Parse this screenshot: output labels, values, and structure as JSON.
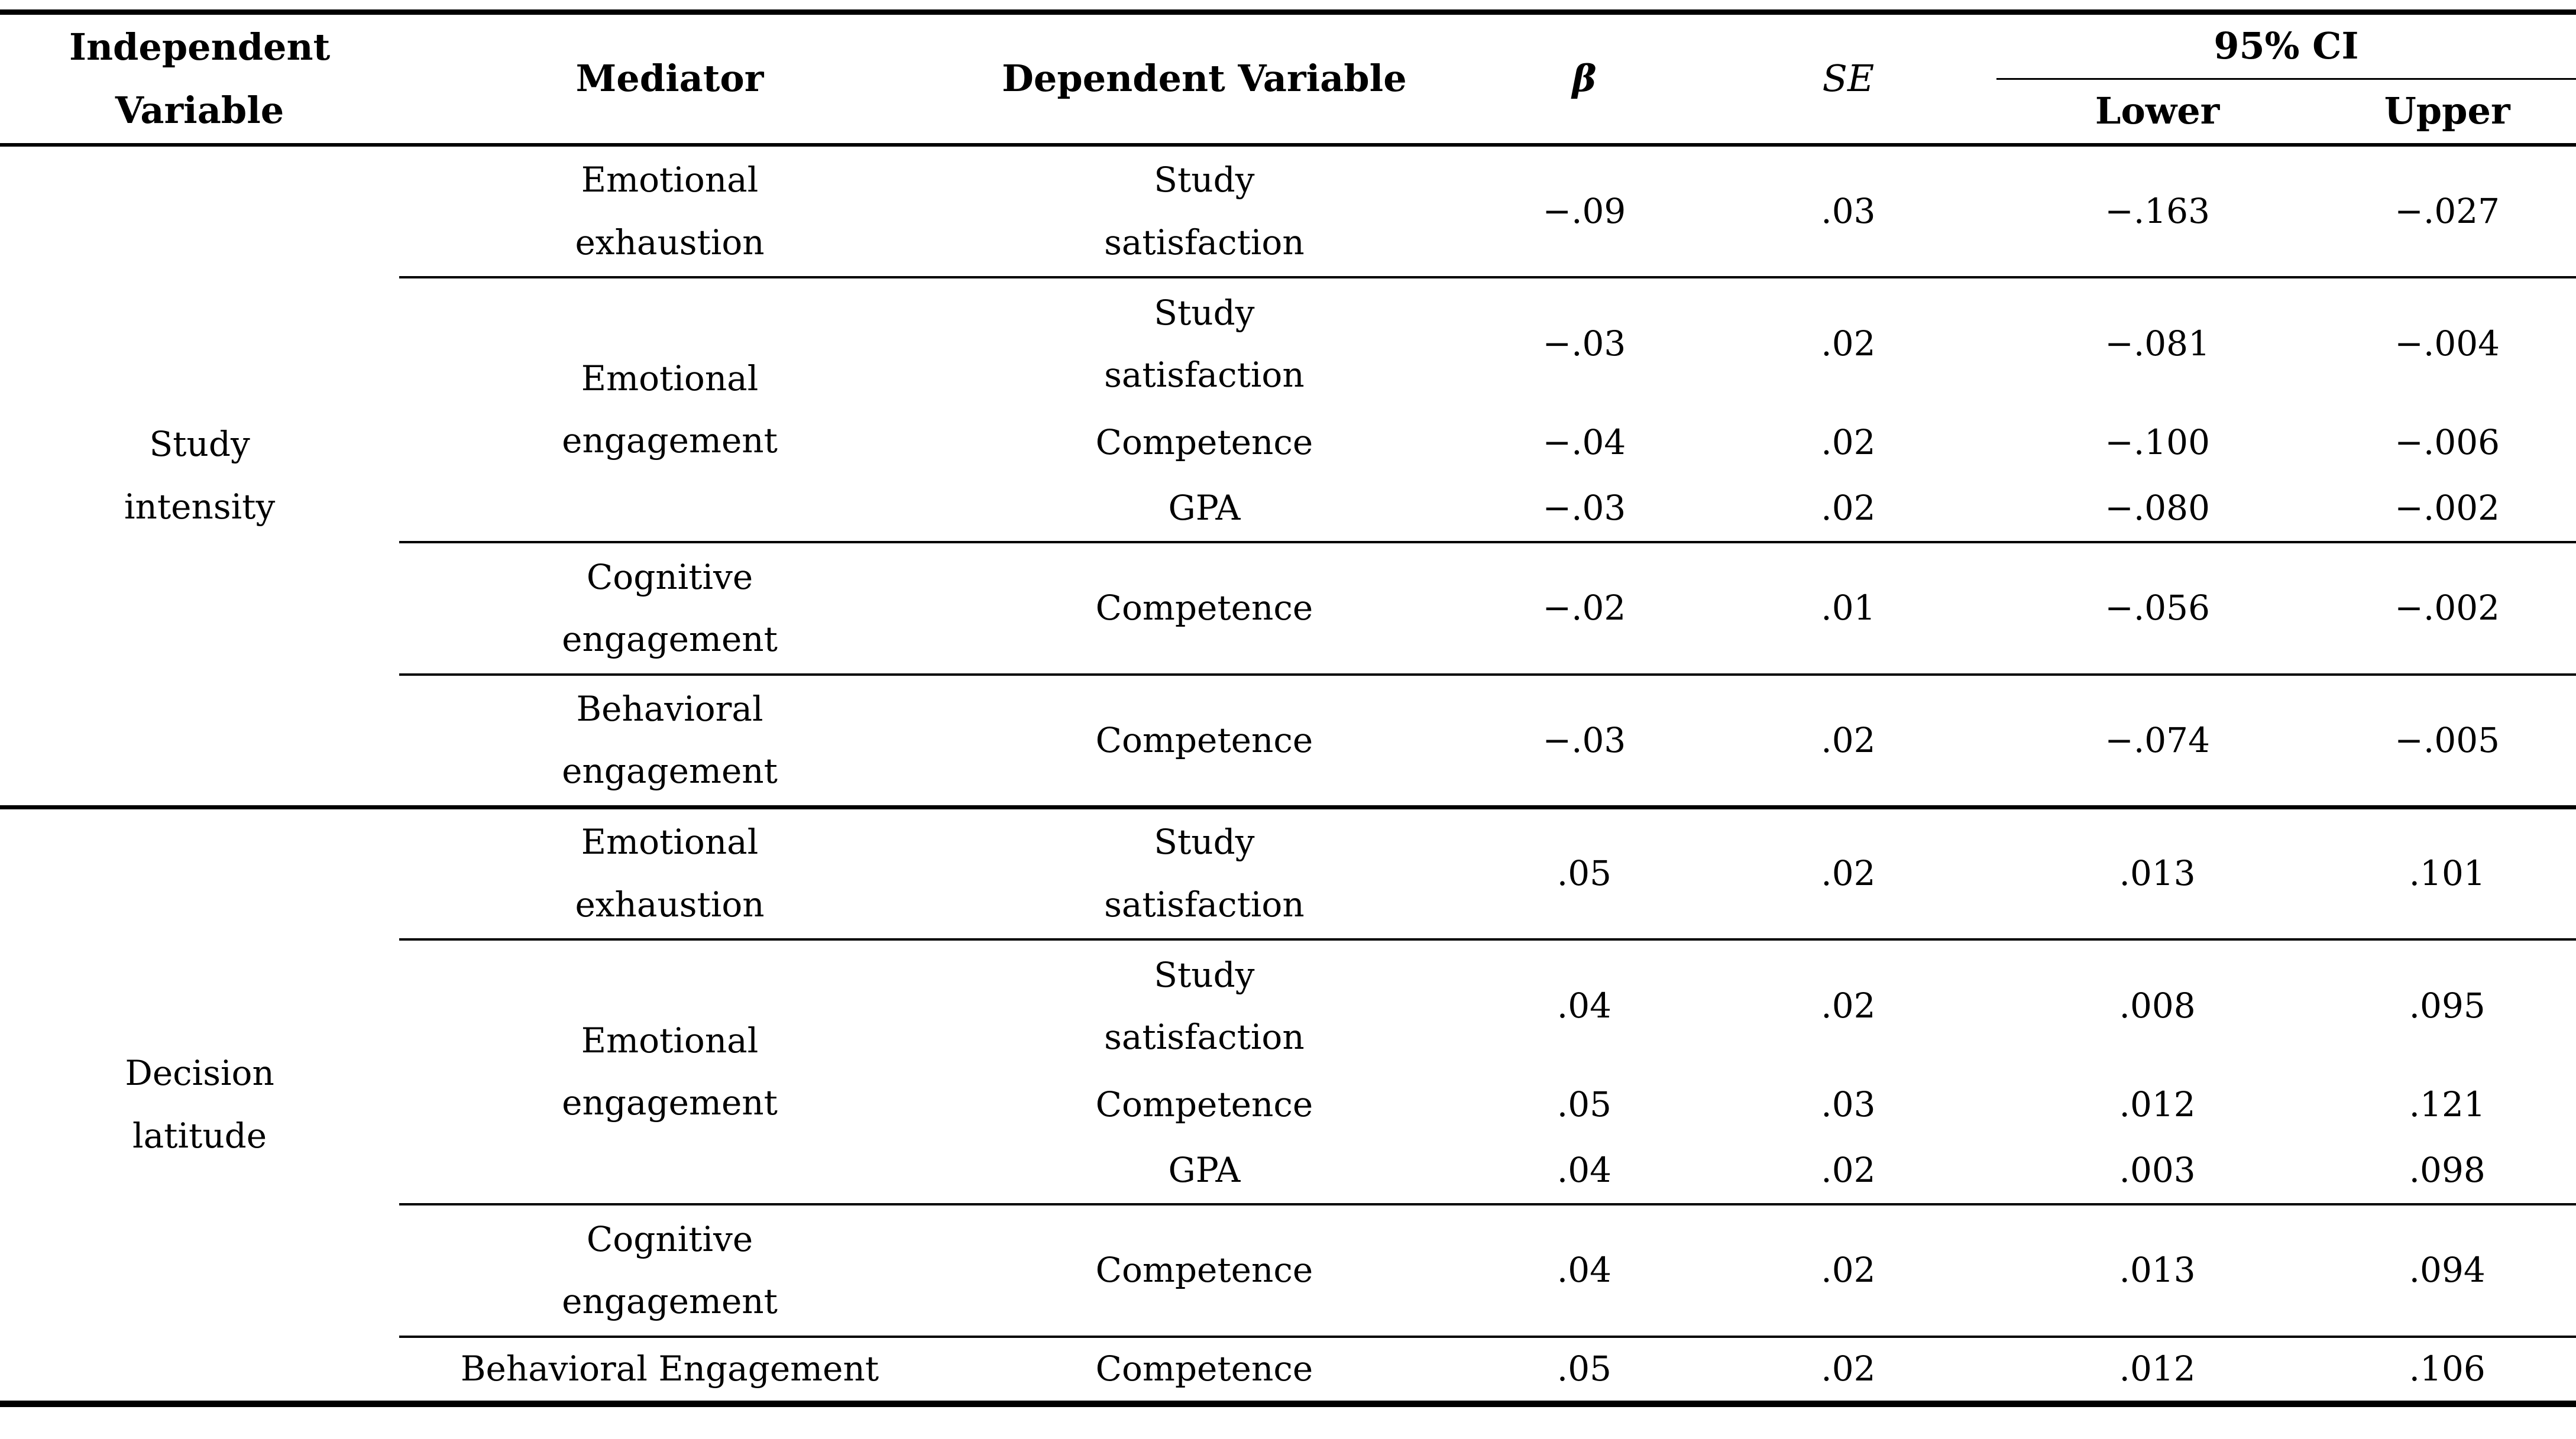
{
  "table": {
    "headers": {
      "independent_variable": "Independent\nVariable",
      "mediator": "Mediator",
      "dependent_variable": "Dependent Variable",
      "beta": "β",
      "se": "SE",
      "ci": "95% CI",
      "ci_lower": "Lower",
      "ci_upper": "Upper"
    },
    "groups": [
      {
        "independent_variable": "Study\nintensity",
        "blocks": [
          {
            "mediator": "Emotional\nexhaustion",
            "rows": [
              {
                "dependent_variable": "Study\nsatisfaction",
                "beta": "−.09",
                "se": ".03",
                "lower": "−.163",
                "upper": "−.027"
              }
            ]
          },
          {
            "mediator": "Emotional\nengagement",
            "rows": [
              {
                "dependent_variable": "Study\nsatisfaction",
                "beta": "−.03",
                "se": ".02",
                "lower": "−.081",
                "upper": "−.004"
              },
              {
                "dependent_variable": "Competence",
                "beta": "−.04",
                "se": ".02",
                "lower": "−.100",
                "upper": "−.006"
              },
              {
                "dependent_variable": "GPA",
                "beta": "−.03",
                "se": ".02",
                "lower": "−.080",
                "upper": "−.002"
              }
            ]
          },
          {
            "mediator": "Cognitive\nengagement",
            "rows": [
              {
                "dependent_variable": "Competence",
                "beta": "−.02",
                "se": ".01",
                "lower": "−.056",
                "upper": "−.002"
              }
            ]
          },
          {
            "mediator": "Behavioral\nengagement",
            "rows": [
              {
                "dependent_variable": "Competence",
                "beta": "−.03",
                "se": ".02",
                "lower": "−.074",
                "upper": "−.005"
              }
            ]
          }
        ]
      },
      {
        "independent_variable": "Decision\nlatitude",
        "blocks": [
          {
            "mediator": "Emotional\nexhaustion",
            "rows": [
              {
                "dependent_variable": "Study\nsatisfaction",
                "beta": ".05",
                "se": ".02",
                "lower": ".013",
                "upper": ".101"
              }
            ]
          },
          {
            "mediator": "Emotional\nengagement",
            "rows": [
              {
                "dependent_variable": "Study\nsatisfaction",
                "beta": ".04",
                "se": ".02",
                "lower": ".008",
                "upper": ".095"
              },
              {
                "dependent_variable": "Competence",
                "beta": ".05",
                "se": ".03",
                "lower": ".012",
                "upper": ".121"
              },
              {
                "dependent_variable": "GPA",
                "beta": ".04",
                "se": ".02",
                "lower": ".003",
                "upper": ".098"
              }
            ]
          },
          {
            "mediator": "Cognitive\nengagement",
            "rows": [
              {
                "dependent_variable": "Competence",
                "beta": ".04",
                "se": ".02",
                "lower": ".013",
                "upper": ".094"
              }
            ]
          },
          {
            "mediator": "Behavioral Engagement",
            "rows": [
              {
                "dependent_variable": "Competence",
                "beta": ".05",
                "se": ".02",
                "lower": ".012",
                "upper": ".106"
              }
            ]
          }
        ]
      }
    ]
  }
}
